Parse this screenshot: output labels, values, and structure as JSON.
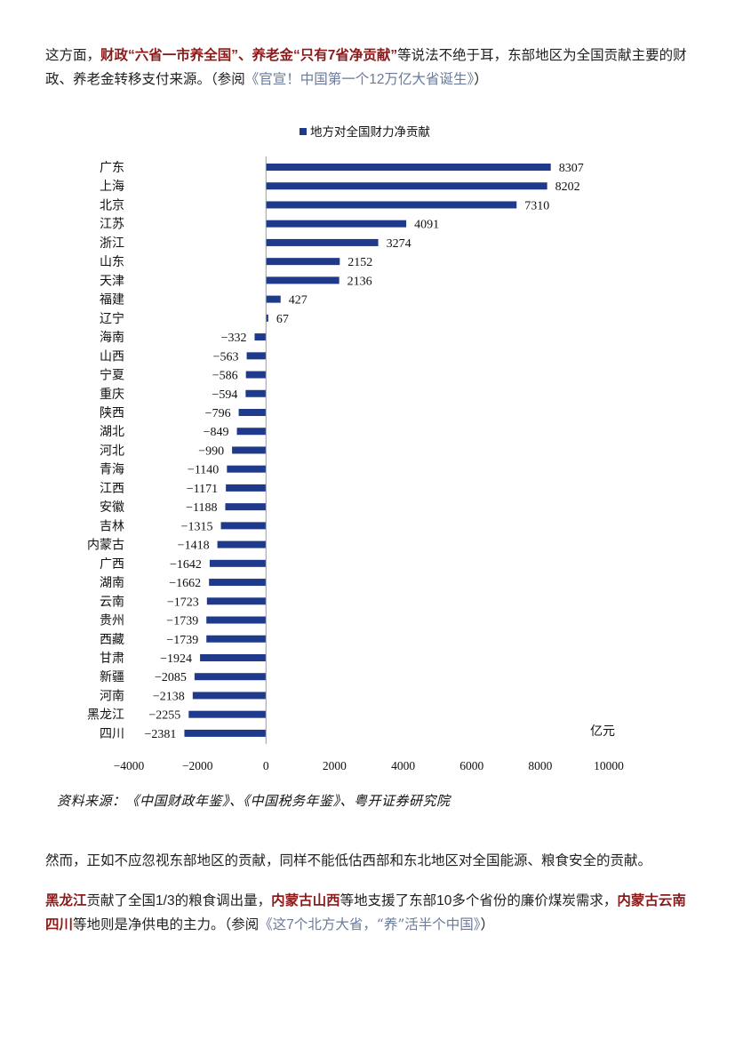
{
  "para1": {
    "t1": "这方面，",
    "h1": "财政“六省一市养全国”、养老金“只有",
    "h1num": "7",
    "h1b": "省净贡献”",
    "t2": "等说法不绝于耳，东部地区为全国贡献主要的财政、养老金转移支付来源。（参阅",
    "ref_a": "《官宣！中国第一个",
    "ref_num": "12",
    "ref_b": "万亿大省诞生》",
    "t3": "）"
  },
  "chart_data": {
    "type": "bar",
    "orientation": "horizontal",
    "legend": "地方对全国财力净贡献",
    "legend_position": "top",
    "unit_label": "亿元",
    "categories": [
      "广东",
      "上海",
      "北京",
      "江苏",
      "浙江",
      "山东",
      "天津",
      "福建",
      "辽宁",
      "海南",
      "山西",
      "宁夏",
      "重庆",
      "陕西",
      "湖北",
      "河北",
      "青海",
      "江西",
      "安徽",
      "吉林",
      "内蒙古",
      "广西",
      "湖南",
      "云南",
      "贵州",
      "西藏",
      "甘肃",
      "新疆",
      "河南",
      "黑龙江",
      "四川"
    ],
    "values": [
      8307,
      8202,
      7310,
      4091,
      3274,
      2152,
      2136,
      427,
      67,
      -332,
      -563,
      -586,
      -594,
      -796,
      -849,
      -990,
      -1140,
      -1171,
      -1188,
      -1315,
      -1418,
      -1642,
      -1662,
      -1723,
      -1739,
      -1739,
      -1924,
      -2085,
      -2138,
      -2255,
      -2381
    ],
    "x_ticks": [
      "-4000",
      "-2000",
      "0",
      "2000",
      "4000",
      "6000",
      "8000",
      "10000"
    ],
    "xlim": [
      -4000,
      10000
    ],
    "bar_color": "#1f3a8a",
    "grid": false
  },
  "source": "资料来源：《中国财政年鉴》、《中国税务年鉴》、粤开证券研究院",
  "para2": {
    "text": "然而，正如不应忽视东部地区的贡献，同样不能低估西部和东北地区对全国能源、粮食安全的贡献。"
  },
  "para3": {
    "h1": "黑龙江",
    "t1": "贡献了全国",
    "n1": "1/3",
    "t1b": "的粮食调出量，",
    "h2": "内蒙古山西",
    "t2": "等地支援了东部",
    "n2": "10",
    "t2b": "多个省份的廉价煤炭需求，",
    "h3": "内蒙古云南四川",
    "t3": "等地则是净供电的主力。（参阅",
    "ref_a": "《这",
    "ref_num": "7",
    "ref_b": "个北方大省，“养”活半个中国》",
    "t4": "）"
  }
}
